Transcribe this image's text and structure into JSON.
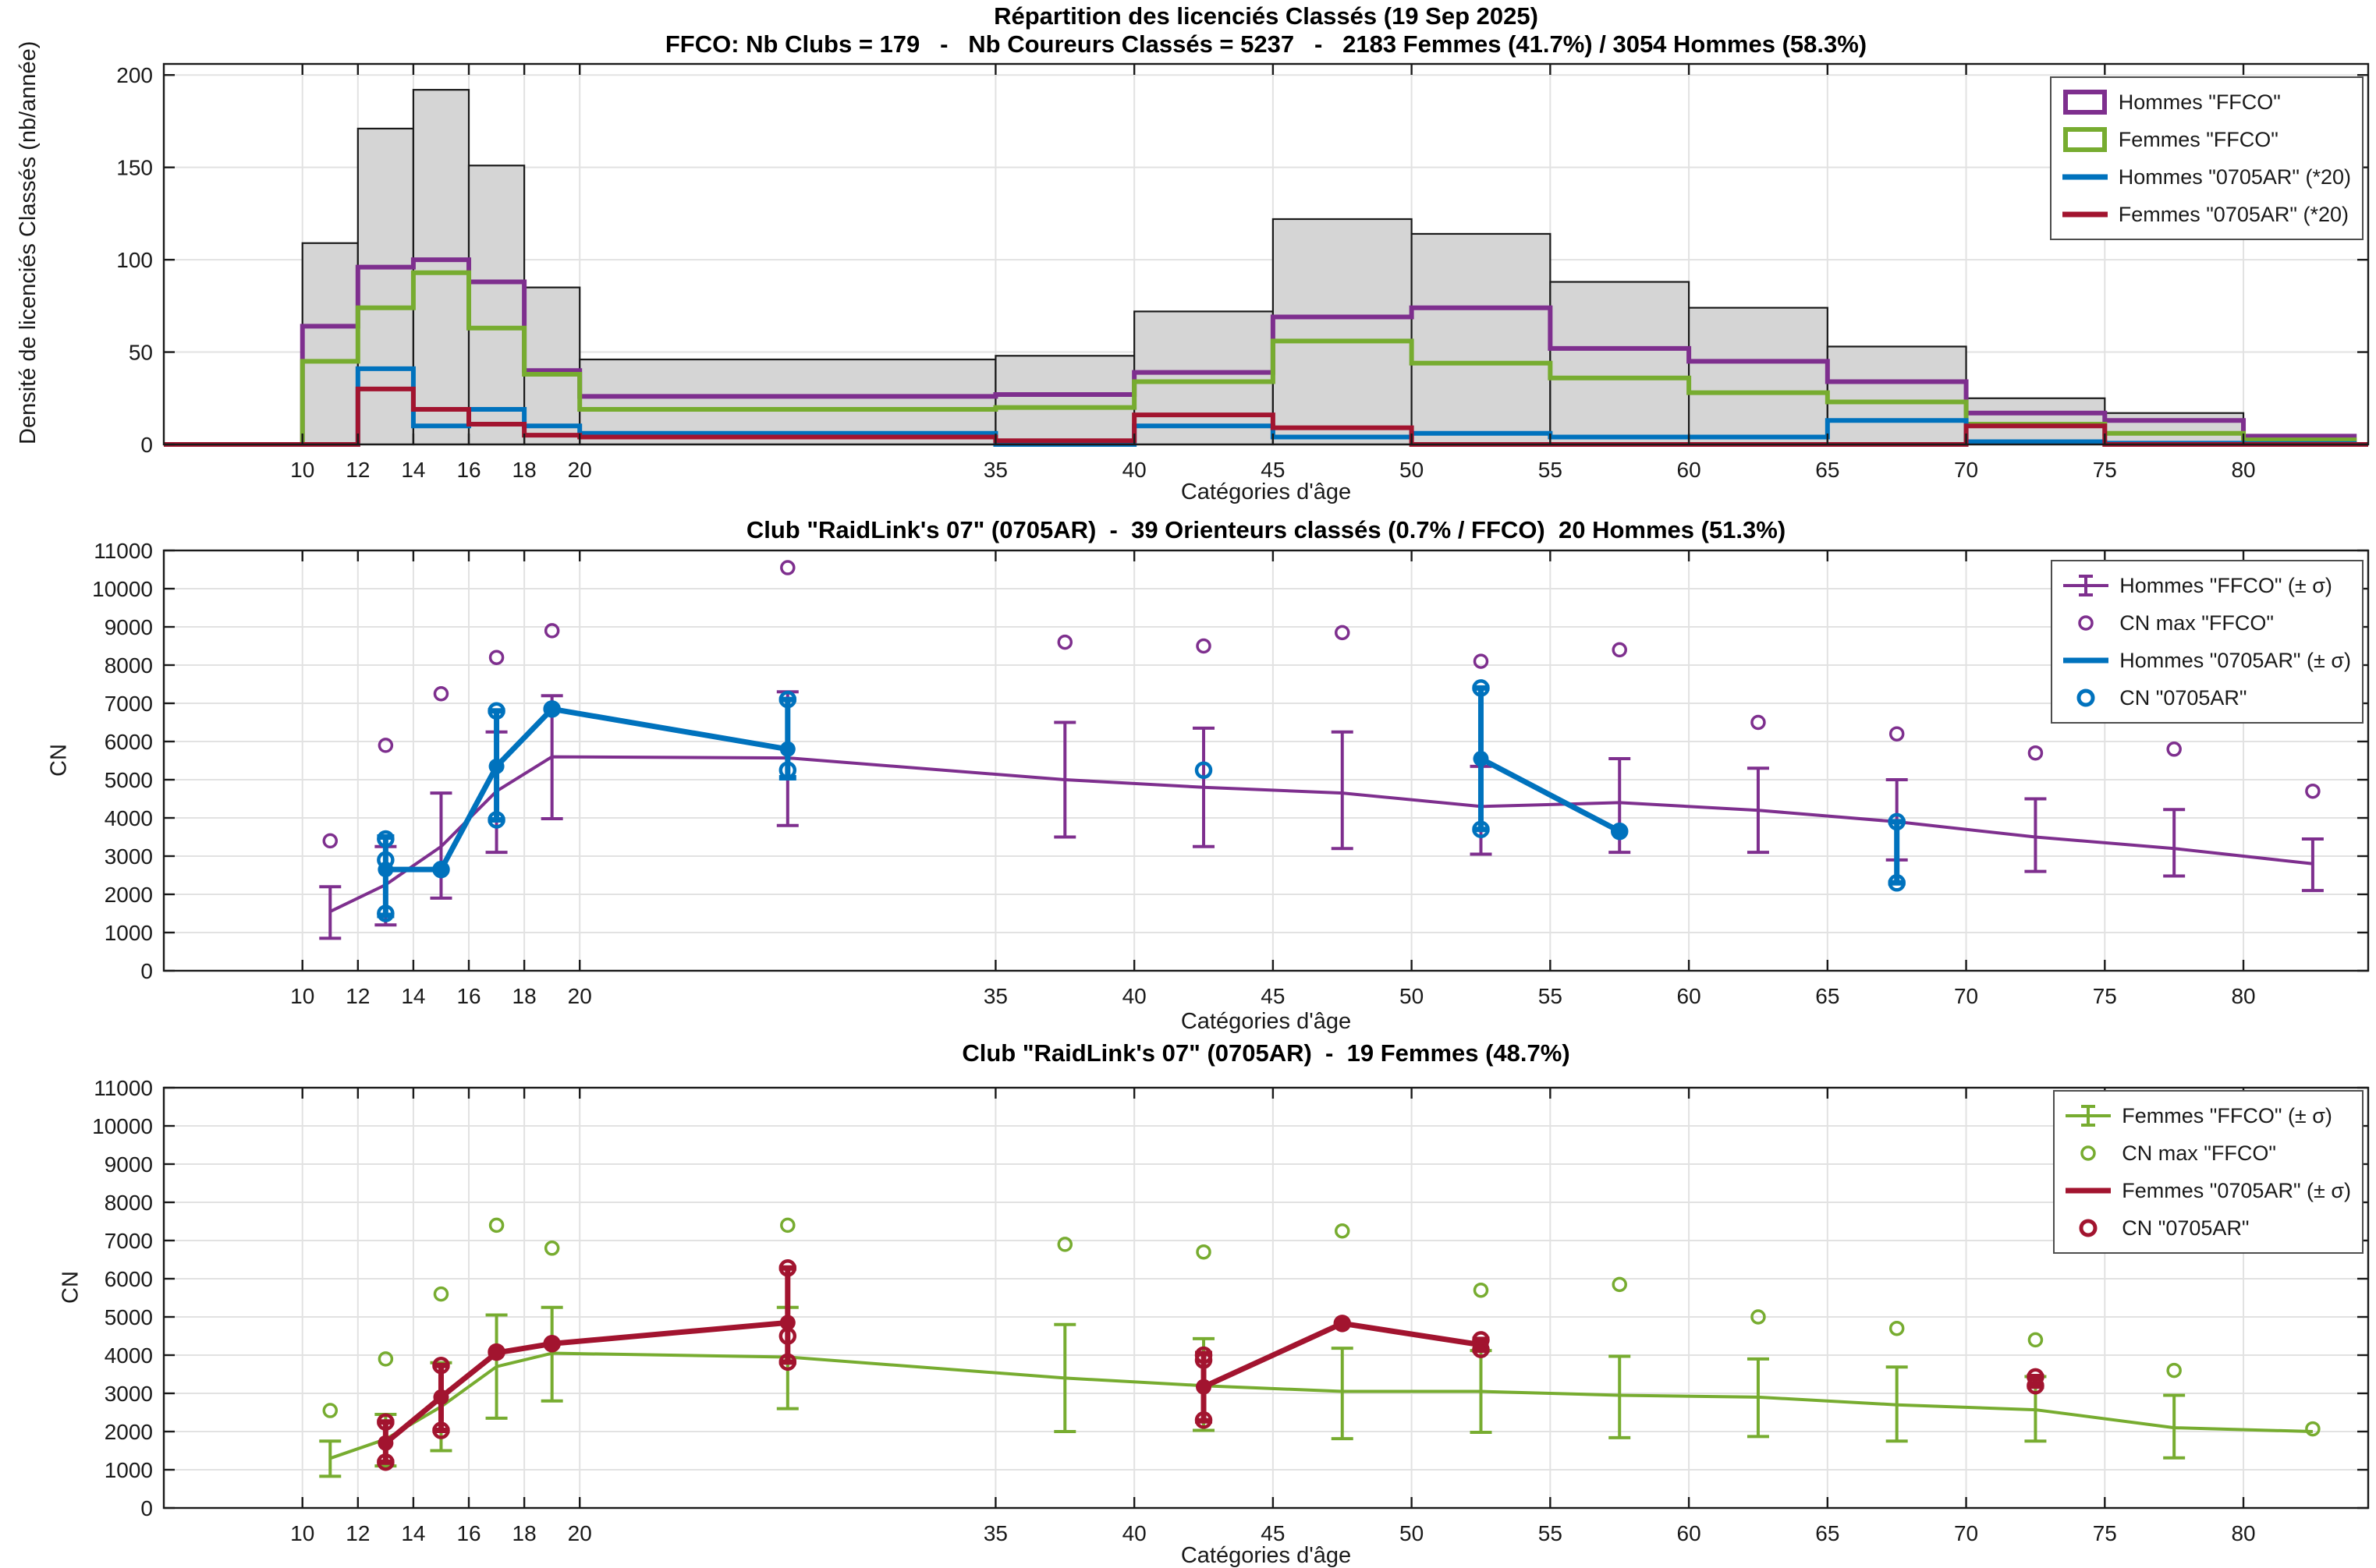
{
  "figure": {
    "background": "#ffffff",
    "axis_color": "#1a1a1a",
    "grid_color": "#e2e2e2"
  },
  "chart_data": [
    {
      "type": "bar",
      "title": "Répartition des licenciés Classés (19 Sep 2025)",
      "subtitle": "FFCO: Nb Clubs = 179   -   Nb Coureurs Classés = 5237   -   2183 Femmes (41.7%) / 3054 Hommes (58.3%)",
      "ylabel": "Densité de licenciés Classés (nb/année)",
      "xlabel": "Catégories d'âge",
      "xlim": [
        5,
        84.5
      ],
      "ylim": [
        0,
        206
      ],
      "xticks": [
        10,
        12,
        14,
        16,
        18,
        20,
        35,
        40,
        45,
        50,
        55,
        60,
        65,
        70,
        75,
        80
      ],
      "yticks": [
        0,
        50,
        100,
        150,
        200
      ],
      "bin_edges": [
        10,
        12,
        14,
        16,
        18,
        20,
        35,
        40,
        45,
        50,
        55,
        60,
        65,
        70,
        75,
        80,
        84
      ],
      "bars": {
        "name": "total-ffco",
        "color": "#d5d5d5",
        "edge": "#1a1a1a",
        "values": [
          109,
          171,
          192,
          151,
          85,
          46,
          48,
          72,
          122,
          114,
          88,
          74,
          53,
          25,
          17,
          2
        ]
      },
      "steps": [
        {
          "name": "hommes-ffco",
          "color": "#7E2F8E",
          "values": [
            64,
            96,
            100,
            88,
            40,
            26,
            27,
            39,
            69,
            74,
            52,
            45,
            34,
            17,
            13,
            4.5
          ]
        },
        {
          "name": "femmes-ffco",
          "color": "#77AC30",
          "values": [
            45,
            74,
            93,
            63,
            38,
            19,
            20,
            34,
            56,
            44,
            36,
            28,
            23,
            11,
            6,
            2.5
          ]
        },
        {
          "name": "hommes-0705ar",
          "color": "#0072BD",
          "values": [
            0,
            41,
            10,
            19,
            10,
            6,
            0,
            10,
            4,
            6,
            4,
            4,
            13,
            1.5,
            0.7,
            0.5
          ]
        },
        {
          "name": "femmes-0705ar",
          "color": "#A2142F",
          "values": [
            0,
            30,
            19,
            11,
            5,
            4,
            2,
            16,
            9,
            0,
            0,
            0,
            0,
            10,
            0,
            0
          ]
        }
      ],
      "legend": [
        {
          "glyph": "box",
          "color": "#7E2F8E",
          "label": "Hommes \"FFCO\""
        },
        {
          "glyph": "box",
          "color": "#77AC30",
          "label": "Femmes \"FFCO\""
        },
        {
          "glyph": "line",
          "color": "#0072BD",
          "label": "Hommes \"0705AR\" (*20)"
        },
        {
          "glyph": "line",
          "color": "#A2142F",
          "label": "Femmes \"0705AR\" (*20)"
        }
      ]
    },
    {
      "type": "line",
      "title": "Club \"RaidLink's 07\" (0705AR)  -  39 Orienteurs classés (0.7% / FFCO)  20 Hommes (51.3%)",
      "ylabel": "CN",
      "xlabel": "Catégories d'âge",
      "xlim": [
        5,
        84.5
      ],
      "ylim": [
        0,
        11000
      ],
      "xticks": [
        10,
        12,
        14,
        16,
        18,
        20,
        35,
        40,
        45,
        50,
        55,
        60,
        65,
        70,
        75,
        80
      ],
      "yticks": [
        0,
        1000,
        2000,
        3000,
        4000,
        5000,
        6000,
        7000,
        8000,
        9000,
        10000,
        11000
      ],
      "series": [
        {
          "name": "hommes-ffco-mean",
          "kind": "errorline",
          "color": "#7E2F8E",
          "lw": 4,
          "marker": "none",
          "cap": 14,
          "points": [
            {
              "x": 11,
              "y": 1550,
              "lo": 850,
              "hi": 2200
            },
            {
              "x": 13,
              "y": 2250,
              "lo": 1200,
              "hi": 3250
            },
            {
              "x": 15,
              "y": 3250,
              "lo": 1900,
              "hi": 4650
            },
            {
              "x": 17,
              "y": 4700,
              "lo": 3100,
              "hi": 6250
            },
            {
              "x": 19,
              "y": 5600,
              "lo": 3980,
              "hi": 7200
            },
            {
              "x": 27.5,
              "y": 5570,
              "lo": 3800,
              "hi": 7300
            },
            {
              "x": 37.5,
              "y": 5000,
              "lo": 3500,
              "hi": 6500
            },
            {
              "x": 42.5,
              "y": 4800,
              "lo": 3250,
              "hi": 6350
            },
            {
              "x": 47.5,
              "y": 4650,
              "lo": 3200,
              "hi": 6250
            },
            {
              "x": 52.5,
              "y": 4300,
              "lo": 3050,
              "hi": 5350
            },
            {
              "x": 57.5,
              "y": 4400,
              "lo": 3100,
              "hi": 5550
            },
            {
              "x": 62.5,
              "y": 4200,
              "lo": 3100,
              "hi": 5300
            },
            {
              "x": 67.5,
              "y": 3900,
              "lo": 2900,
              "hi": 5000
            },
            {
              "x": 72.5,
              "y": 3500,
              "lo": 2600,
              "hi": 4500
            },
            {
              "x": 77.5,
              "y": 3200,
              "lo": 2480,
              "hi": 4220
            },
            {
              "x": 82.5,
              "y": 2800,
              "lo": 2100,
              "hi": 3450
            }
          ],
          "segments": [
            [
              0,
              1,
              2,
              3,
              4,
              5,
              6,
              7,
              8,
              9,
              10,
              11,
              12,
              13,
              14,
              15
            ]
          ]
        },
        {
          "name": "cn-max-ffco",
          "kind": "rings",
          "color": "#7E2F8E",
          "r": 8,
          "sw": 3.5,
          "points": [
            [
              11,
              3400
            ],
            [
              13,
              5900
            ],
            [
              15,
              7250
            ],
            [
              17,
              8200
            ],
            [
              19,
              8900
            ],
            [
              27.5,
              10550
            ],
            [
              37.5,
              8600
            ],
            [
              42.5,
              8500
            ],
            [
              47.5,
              8850
            ],
            [
              52.5,
              8100
            ],
            [
              57.5,
              8400
            ],
            [
              62.5,
              6500
            ],
            [
              67.5,
              6200
            ],
            [
              72.5,
              5700
            ],
            [
              77.5,
              5800
            ],
            [
              82.5,
              4700
            ]
          ]
        },
        {
          "name": "hommes-0705ar-mean",
          "kind": "errorline",
          "color": "#0072BD",
          "lw": 7,
          "marker": "filled",
          "cap": 11,
          "points": [
            {
              "x": 13,
              "y": 2650,
              "lo": 1450,
              "hi": 3500
            },
            {
              "x": 15,
              "y": 2650
            },
            {
              "x": 17,
              "y": 5350,
              "lo": 3950,
              "hi": 6800
            },
            {
              "x": 19,
              "y": 6850
            },
            {
              "x": 27.5,
              "y": 5800,
              "lo": 5050,
              "hi": 7100
            },
            {
              "x": 52.5,
              "y": 5550,
              "lo": 3700,
              "hi": 7400
            },
            {
              "x": 57.5,
              "y": 3650
            },
            {
              "x": 67.5,
              "y": 3100,
              "lo": 2300,
              "hi": 3900,
              "nm": true
            }
          ],
          "segments": [
            [
              0,
              1,
              2,
              3,
              4
            ],
            [
              5,
              6
            ]
          ]
        },
        {
          "name": "cn-0705ar",
          "kind": "rings",
          "color": "#0072BD",
          "r": 9,
          "sw": 4.5,
          "points": [
            [
              13,
              3450
            ],
            [
              13,
              2900
            ],
            [
              13,
              1500
            ],
            [
              15,
              2650
            ],
            [
              17,
              6800
            ],
            [
              17,
              3950
            ],
            [
              19,
              6850
            ],
            [
              27.5,
              7100
            ],
            [
              27.5,
              5250
            ],
            [
              42.5,
              5250
            ],
            [
              52.5,
              7400
            ],
            [
              52.5,
              3700
            ],
            [
              57.5,
              3650
            ],
            [
              67.5,
              3900
            ],
            [
              67.5,
              2300
            ]
          ]
        }
      ],
      "legend": [
        {
          "glyph": "errorbar",
          "color": "#7E2F8E",
          "label": "Hommes \"FFCO\" (± σ)"
        },
        {
          "glyph": "ring",
          "color": "#7E2F8E",
          "label": "CN max \"FFCO\""
        },
        {
          "glyph": "line",
          "color": "#0072BD",
          "label": "Hommes \"0705AR\" (± σ)"
        },
        {
          "glyph": "ring-bold",
          "color": "#0072BD",
          "label": "CN \"0705AR\""
        }
      ]
    },
    {
      "type": "line",
      "title": "Club \"RaidLink's 07\" (0705AR)  -  19 Femmes (48.7%)",
      "ylabel": "CN",
      "xlabel": "Catégories d'âge",
      "xlim": [
        5,
        84.5
      ],
      "ylim": [
        0,
        11000
      ],
      "xticks": [
        10,
        12,
        14,
        16,
        18,
        20,
        35,
        40,
        45,
        50,
        55,
        60,
        65,
        70,
        75,
        80
      ],
      "yticks": [
        0,
        1000,
        2000,
        3000,
        4000,
        5000,
        6000,
        7000,
        8000,
        9000,
        10000,
        11000
      ],
      "series": [
        {
          "name": "femmes-ffco-mean",
          "kind": "errorline",
          "color": "#77AC30",
          "lw": 4,
          "marker": "none",
          "cap": 14,
          "points": [
            {
              "x": 11,
              "y": 1300,
              "lo": 830,
              "hi": 1750
            },
            {
              "x": 13,
              "y": 1800,
              "lo": 1100,
              "hi": 2450
            },
            {
              "x": 15,
              "y": 2650,
              "lo": 1500,
              "hi": 3800
            },
            {
              "x": 17,
              "y": 3700,
              "lo": 2350,
              "hi": 5050
            },
            {
              "x": 19,
              "y": 4050,
              "lo": 2800,
              "hi": 5250
            },
            {
              "x": 27.5,
              "y": 3950,
              "lo": 2600,
              "hi": 5250
            },
            {
              "x": 37.5,
              "y": 3400,
              "lo": 2000,
              "hi": 4800
            },
            {
              "x": 42.5,
              "y": 3200,
              "lo": 2030,
              "hi": 4430
            },
            {
              "x": 47.5,
              "y": 3050,
              "lo": 1815,
              "hi": 4180
            },
            {
              "x": 52.5,
              "y": 3050,
              "lo": 1980,
              "hi": 4120
            },
            {
              "x": 57.5,
              "y": 2950,
              "lo": 1840,
              "hi": 3970
            },
            {
              "x": 62.5,
              "y": 2900,
              "lo": 1870,
              "hi": 3900
            },
            {
              "x": 67.5,
              "y": 2700,
              "lo": 1750,
              "hi": 3690
            },
            {
              "x": 72.5,
              "y": 2570,
              "lo": 1750,
              "hi": 3440
            },
            {
              "x": 77.5,
              "y": 2100,
              "lo": 1310,
              "hi": 2950
            },
            {
              "x": 82.5,
              "y": 2000
            }
          ],
          "segments": [
            [
              0,
              1,
              2,
              3,
              4,
              5,
              6,
              7,
              8,
              9,
              10,
              11,
              12,
              13,
              14,
              15
            ]
          ]
        },
        {
          "name": "cn-max-ffco",
          "kind": "rings",
          "color": "#77AC30",
          "r": 8,
          "sw": 3.5,
          "points": [
            [
              11,
              2550
            ],
            [
              13,
              3900
            ],
            [
              15,
              5600
            ],
            [
              17,
              7400
            ],
            [
              19,
              6800
            ],
            [
              27.5,
              7400
            ],
            [
              37.5,
              6900
            ],
            [
              42.5,
              6700
            ],
            [
              47.5,
              7250
            ],
            [
              52.5,
              5700
            ],
            [
              57.5,
              5850
            ],
            [
              62.5,
              5000
            ],
            [
              67.5,
              4700
            ],
            [
              72.5,
              4400
            ],
            [
              77.5,
              3600
            ],
            [
              82.5,
              2070
            ]
          ]
        },
        {
          "name": "femmes-0705ar-mean",
          "kind": "errorline",
          "color": "#A2142F",
          "lw": 7,
          "marker": "filled",
          "cap": 11,
          "points": [
            {
              "x": 13,
              "y": 1700,
              "lo": 1200,
              "hi": 2250
            },
            {
              "x": 15,
              "y": 2900,
              "lo": 2030,
              "hi": 3730
            },
            {
              "x": 17,
              "y": 4060
            },
            {
              "x": 19,
              "y": 4300
            },
            {
              "x": 27.5,
              "y": 4850,
              "lo": 3820,
              "hi": 6280
            },
            {
              "x": 42.5,
              "y": 3170,
              "lo": 2280,
              "hi": 4040
            },
            {
              "x": 47.5,
              "y": 4830
            },
            {
              "x": 52.5,
              "y": 4270,
              "lo": 4130,
              "hi": 4410
            },
            {
              "x": 72.5,
              "y": 3320,
              "lo": 3190,
              "hi": 3440,
              "nm": true
            }
          ],
          "segments": [
            [
              0,
              1,
              2,
              3,
              4
            ],
            [
              5,
              6,
              7
            ]
          ]
        },
        {
          "name": "cn-0705ar",
          "kind": "rings",
          "color": "#A2142F",
          "r": 9,
          "sw": 4.5,
          "points": [
            [
              13,
              2250
            ],
            [
              13,
              1200
            ],
            [
              15,
              3730
            ],
            [
              15,
              2030
            ],
            [
              17,
              4080
            ],
            [
              19,
              4300
            ],
            [
              27.5,
              6280
            ],
            [
              27.5,
              4500
            ],
            [
              27.5,
              3820
            ],
            [
              42.5,
              4000
            ],
            [
              42.5,
              3870
            ],
            [
              42.5,
              2300
            ],
            [
              47.5,
              4830
            ],
            [
              52.5,
              4400
            ],
            [
              52.5,
              4150
            ],
            [
              72.5,
              3430
            ],
            [
              72.5,
              3200
            ]
          ]
        }
      ],
      "legend": [
        {
          "glyph": "errorbar",
          "color": "#77AC30",
          "label": "Femmes \"FFCO\" (± σ)"
        },
        {
          "glyph": "ring",
          "color": "#77AC30",
          "label": "CN max \"FFCO\""
        },
        {
          "glyph": "line",
          "color": "#A2142F",
          "label": "Femmes \"0705AR\" (± σ)"
        },
        {
          "glyph": "ring-bold",
          "color": "#A2142F",
          "label": "CN \"0705AR\""
        }
      ]
    }
  ]
}
